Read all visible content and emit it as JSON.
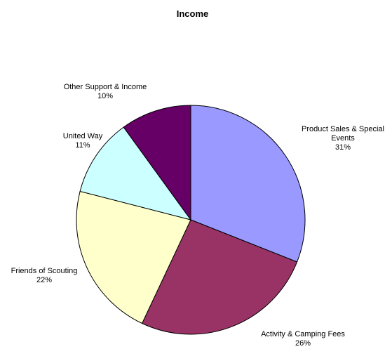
{
  "chart_data": {
    "type": "pie",
    "title": "Income",
    "categories": [
      "Product Sales & Special Events",
      "Activity & Camping Fees",
      "Friends of Scouting",
      "United Way",
      "Other Support & Income"
    ],
    "values": [
      31,
      26,
      22,
      11,
      10
    ],
    "value_labels": [
      "31%",
      "26%",
      "22%",
      "11%",
      "10%"
    ],
    "colors": [
      "#9999ff",
      "#993366",
      "#ffffcc",
      "#ccffff",
      "#660066"
    ]
  }
}
